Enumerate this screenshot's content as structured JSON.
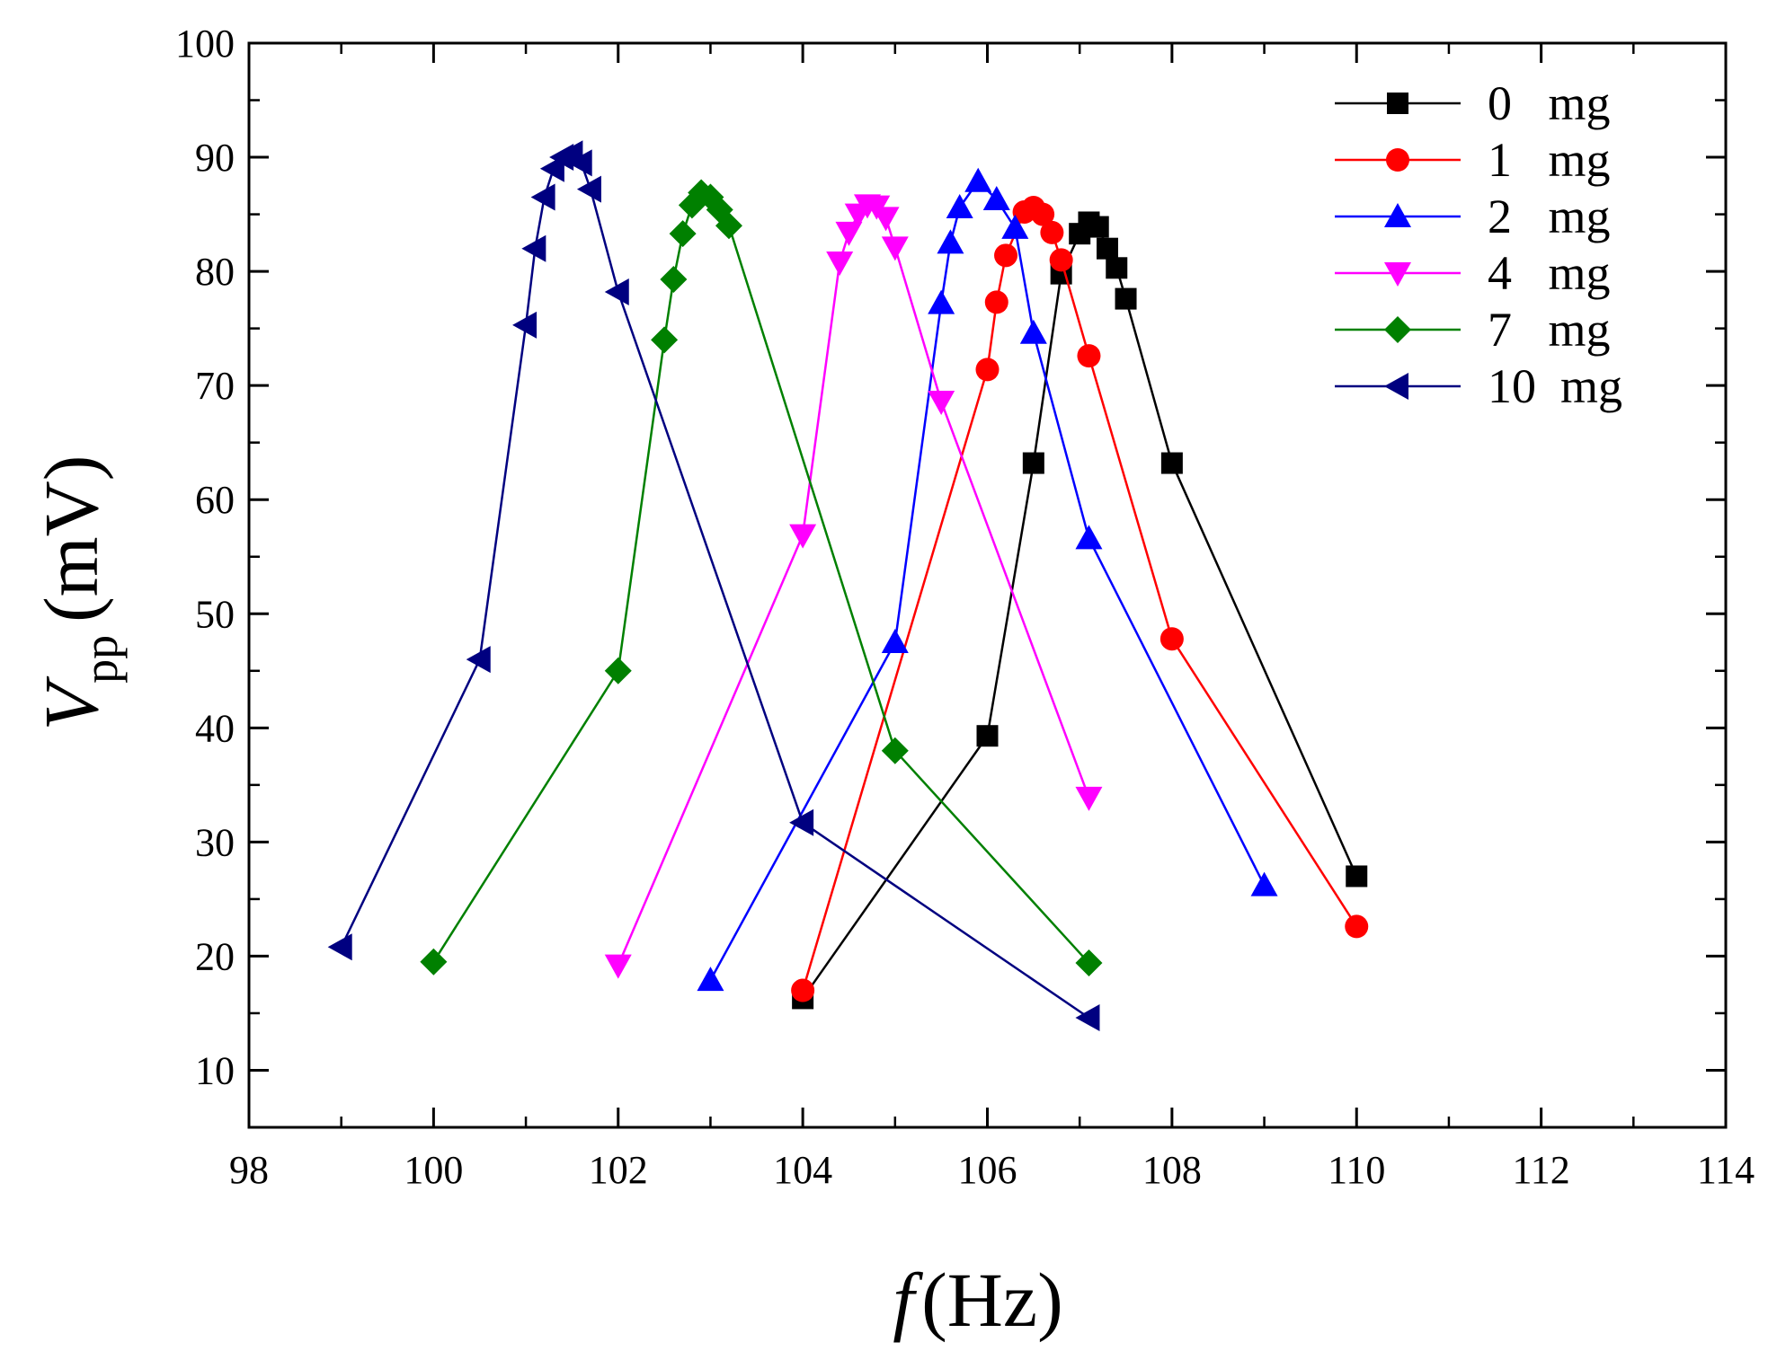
{
  "chart_data": {
    "type": "line",
    "title": "",
    "xlabel": {
      "symbol": "f",
      "unit": "(Hz)"
    },
    "ylabel": {
      "symbol": "V",
      "subscript": "pp",
      "unit": "(mV)"
    },
    "xlim": [
      98,
      114
    ],
    "ylim": [
      5,
      100
    ],
    "x_ticks": [
      98,
      100,
      102,
      104,
      106,
      108,
      110,
      112,
      114
    ],
    "y_ticks": [
      10,
      20,
      30,
      40,
      50,
      60,
      70,
      80,
      90,
      100
    ],
    "grid": false,
    "legend_position": "top-right",
    "series": [
      {
        "name": "0   mg",
        "color": "#000000",
        "marker": "square",
        "points": [
          [
            104,
            16.3
          ],
          [
            106,
            39.3
          ],
          [
            106.5,
            63.2
          ],
          [
            106.8,
            79.8
          ],
          [
            107,
            83.3
          ],
          [
            107.1,
            84.3
          ],
          [
            107.2,
            83.9
          ],
          [
            107.3,
            82.0
          ],
          [
            107.4,
            80.3
          ],
          [
            107.5,
            77.6
          ],
          [
            108,
            63.2
          ],
          [
            110,
            27.0
          ]
        ]
      },
      {
        "name": "1   mg",
        "color": "#ff0000",
        "marker": "circle",
        "points": [
          [
            104,
            17.0
          ],
          [
            106,
            71.4
          ],
          [
            106.1,
            77.3
          ],
          [
            106.2,
            81.4
          ],
          [
            106.4,
            85.2
          ],
          [
            106.5,
            85.6
          ],
          [
            106.6,
            85.0
          ],
          [
            106.7,
            83.4
          ],
          [
            106.8,
            81.0
          ],
          [
            107.1,
            72.6
          ],
          [
            108,
            47.8
          ],
          [
            110,
            22.6
          ]
        ]
      },
      {
        "name": "2   mg",
        "color": "#0000ff",
        "marker": "triangle-up",
        "points": [
          [
            103,
            17.9
          ],
          [
            105,
            47.5
          ],
          [
            105.5,
            77.2
          ],
          [
            105.6,
            82.5
          ],
          [
            105.7,
            85.6
          ],
          [
            105.9,
            87.9
          ],
          [
            106.1,
            86.3
          ],
          [
            106.3,
            83.8
          ],
          [
            106.5,
            74.6
          ],
          [
            107.1,
            56.6
          ],
          [
            109,
            26.2
          ]
        ]
      },
      {
        "name": "4   mg",
        "color": "#ff00ff",
        "marker": "triangle-down",
        "points": [
          [
            102,
            19.2
          ],
          [
            104,
            56.9
          ],
          [
            104.4,
            80.8
          ],
          [
            104.5,
            83.4
          ],
          [
            104.6,
            85.0
          ],
          [
            104.7,
            85.8
          ],
          [
            104.8,
            85.7
          ],
          [
            104.9,
            84.7
          ],
          [
            105,
            82.1
          ],
          [
            105.5,
            68.6
          ],
          [
            107.1,
            33.9
          ]
        ]
      },
      {
        "name": "7   mg",
        "color": "#008000",
        "marker": "diamond",
        "points": [
          [
            100,
            19.5
          ],
          [
            102,
            45.0
          ],
          [
            102.5,
            74.0
          ],
          [
            102.6,
            79.3
          ],
          [
            102.7,
            83.3
          ],
          [
            102.8,
            85.8
          ],
          [
            102.9,
            86.9
          ],
          [
            103,
            86.5
          ],
          [
            103.1,
            85.4
          ],
          [
            103.2,
            84.0
          ],
          [
            105,
            38.0
          ],
          [
            107.1,
            19.4
          ]
        ]
      },
      {
        "name": "10  mg",
        "color": "#000080",
        "marker": "triangle-left",
        "points": [
          [
            99,
            20.8
          ],
          [
            100.5,
            46.0
          ],
          [
            101,
            75.3
          ],
          [
            101.1,
            82.0
          ],
          [
            101.2,
            86.5
          ],
          [
            101.3,
            89.0
          ],
          [
            101.4,
            90.0
          ],
          [
            101.5,
            90.3
          ],
          [
            101.6,
            89.5
          ],
          [
            101.7,
            87.2
          ],
          [
            102,
            78.2
          ],
          [
            104,
            31.7
          ],
          [
            107.1,
            14.6
          ]
        ]
      }
    ]
  }
}
